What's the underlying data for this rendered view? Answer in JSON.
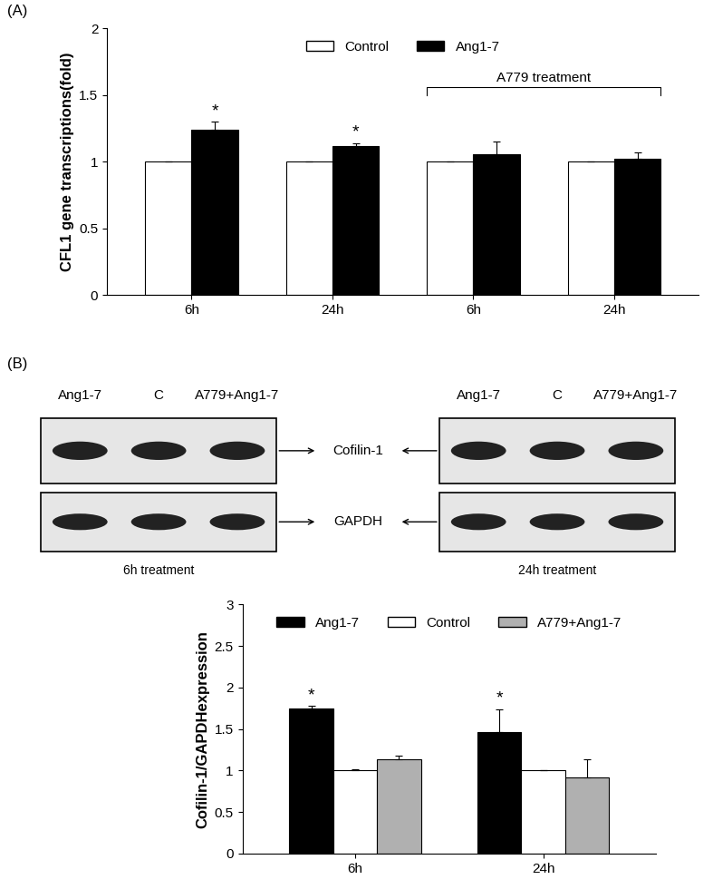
{
  "chart_data": [
    {
      "type": "bar",
      "y_label": "CFL1 gene transcriptions(fold)",
      "categories": [
        "6h",
        "24h",
        "6h",
        "24h"
      ],
      "series": [
        {
          "name": "Control",
          "color": "#ffffff",
          "values": [
            1,
            1,
            1,
            1
          ],
          "errors": [
            0,
            0,
            0,
            0
          ],
          "significance": [
            null,
            null,
            null,
            null
          ]
        },
        {
          "name": "Ang1-7",
          "color": "#000000",
          "values": [
            1.24,
            1.12,
            1.06,
            1.02
          ],
          "errors": [
            0.06,
            0.02,
            0.09,
            0.05
          ],
          "significance": [
            "*",
            "*",
            null,
            null
          ]
        }
      ],
      "annotations": [
        {
          "text": "A779 treatment",
          "categories": [
            2,
            3
          ]
        }
      ],
      "ylim": [
        0,
        2
      ],
      "yticks": [
        0,
        0.5,
        1,
        1.5,
        2
      ],
      "legend": "upper center"
    },
    {
      "type": "bar",
      "y_label": "Cofilin-1/GAPDHexpression",
      "categories": [
        "6h",
        "24h"
      ],
      "series": [
        {
          "name": "Ang1-7",
          "color": "#000000",
          "values": [
            1.75,
            1.46
          ],
          "errors": [
            0.03,
            0.28
          ],
          "significance": [
            "*",
            "*"
          ]
        },
        {
          "name": "Control",
          "color": "#ffffff",
          "values": [
            1.0,
            1.0
          ],
          "errors": [
            0.01,
            0
          ],
          "significance": [
            null,
            null
          ]
        },
        {
          "name": "A779+Ang1-7",
          "color": "#b0b0b0",
          "values": [
            1.13,
            0.92
          ],
          "errors": [
            0.05,
            0.22
          ],
          "significance": [
            null,
            null
          ]
        }
      ],
      "ylim": [
        0,
        3
      ],
      "yticks": [
        0,
        0.5,
        1,
        1.5,
        2,
        2.5,
        3
      ],
      "legend": "upper center"
    }
  ],
  "panels": [
    "(A)",
    "(B)"
  ],
  "blots": {
    "rows": [
      "Cofilin-1",
      "GAPDH"
    ],
    "panels": [
      {
        "lanes": [
          "Ang1-7",
          "C",
          "A779+Ang1-7"
        ],
        "caption": "6h treatment"
      },
      {
        "lanes": [
          "Ang1-7",
          "C",
          "A779+Ang1-7"
        ],
        "caption": "24h treatment"
      }
    ]
  }
}
